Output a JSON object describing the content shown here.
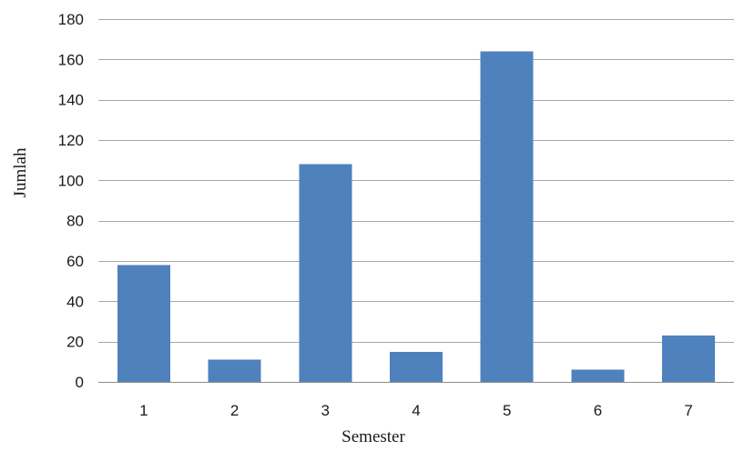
{
  "chart_data": {
    "type": "bar",
    "categories": [
      "1",
      "2",
      "3",
      "4",
      "5",
      "6",
      "7"
    ],
    "values": [
      58,
      11,
      108,
      15,
      164,
      6,
      23
    ],
    "xlabel": "Semester",
    "ylabel": "Jumlah",
    "ylim": [
      0,
      180
    ],
    "yticks": [
      0,
      20,
      40,
      60,
      80,
      100,
      120,
      140,
      160,
      180
    ],
    "grid": true,
    "legend": "none",
    "bar_color": "#4f81bd",
    "grid_color": "#a6a6a6"
  }
}
